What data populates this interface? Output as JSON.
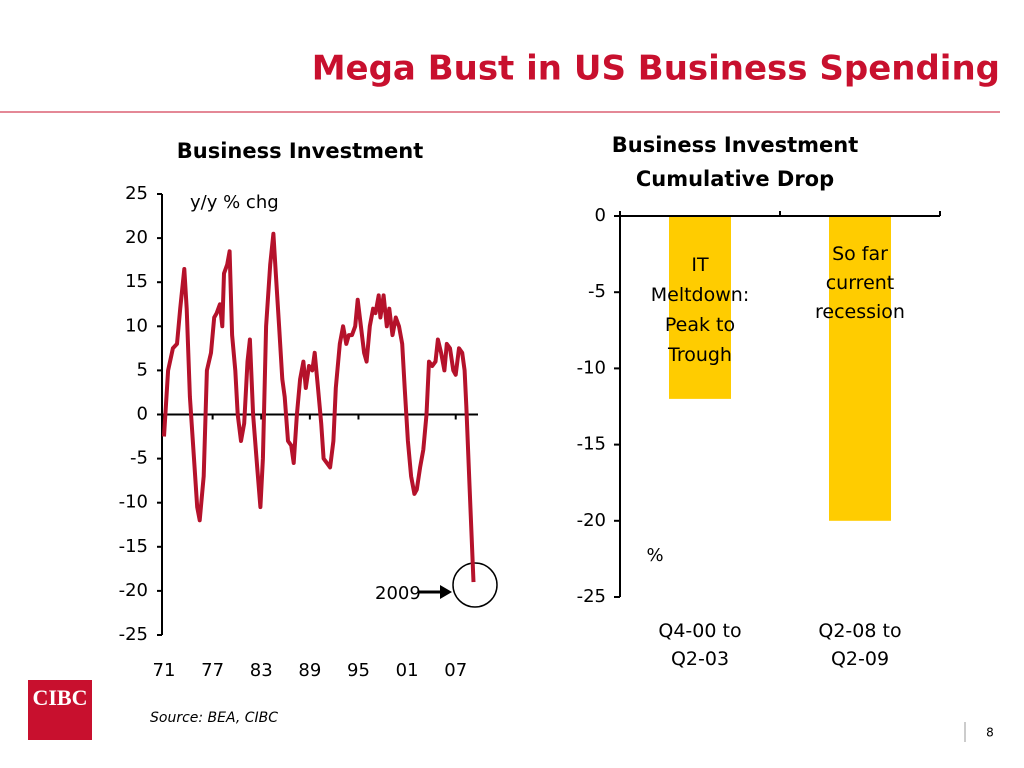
{
  "title": "Mega Bust in US Business Spending",
  "source": "Source: BEA, CIBC",
  "page_number": "8",
  "logo": "CIBC",
  "chart_data": [
    {
      "type": "line",
      "title": "Business Investment",
      "color": "#b5122b",
      "annotations": [
        "y/y % chg",
        "2009"
      ],
      "x": [
        1971.0,
        1971.5,
        1972.1,
        1972.6,
        1973.0,
        1973.5,
        1973.8,
        1974.2,
        1974.7,
        1975.1,
        1975.4,
        1975.9,
        1976.3,
        1976.8,
        1977.2,
        1977.5,
        1977.9,
        1978.2,
        1978.4,
        1978.8,
        1979.1,
        1979.4,
        1979.8,
        1980.1,
        1980.5,
        1980.9,
        1981.3,
        1981.6,
        1982.0,
        1982.5,
        1982.9,
        1983.2,
        1983.6,
        1984.1,
        1984.5,
        1984.8,
        1985.2,
        1985.6,
        1985.9,
        1986.3,
        1986.7,
        1987.0,
        1987.4,
        1987.8,
        1988.2,
        1988.5,
        1988.9,
        1989.3,
        1989.6,
        1990.0,
        1990.4,
        1990.7,
        1991.1,
        1991.5,
        1991.9,
        1992.2,
        1992.7,
        1993.1,
        1993.5,
        1993.8,
        1994.2,
        1994.6,
        1994.9,
        1995.3,
        1995.7,
        1996.0,
        1996.4,
        1996.8,
        1997.1,
        1997.5,
        1997.7,
        1998.1,
        1998.5,
        1998.8,
        1999.2,
        1999.6,
        2000.0,
        2000.4,
        2000.7,
        2001.1,
        2001.5,
        2001.9,
        2002.2,
        2002.6,
        2003.0,
        2003.4,
        2003.7,
        2004.1,
        2004.5,
        2004.8,
        2005.2,
        2005.6,
        2005.9,
        2006.3,
        2006.7,
        2007.0,
        2007.4,
        2007.8,
        2008.1,
        2008.3,
        2008.7,
        2009.2
      ],
      "values": [
        -2.5,
        5,
        7.5,
        8,
        12,
        16.5,
        12,
        2,
        -5,
        -10.5,
        -12,
        -7,
        5,
        7,
        11,
        11.5,
        12.5,
        10,
        16,
        17,
        18.5,
        9,
        5,
        0,
        -3,
        -1,
        6,
        8.5,
        0,
        -6,
        -10.5,
        -5,
        10,
        17,
        20.5,
        16,
        10,
        4,
        2,
        -3,
        -3.5,
        -5.5,
        0,
        4,
        6,
        3,
        5.5,
        5,
        7,
        3,
        -1,
        -5,
        -5.5,
        -6,
        -3,
        3,
        8,
        10,
        8,
        9,
        9,
        10,
        13,
        10,
        7,
        6,
        10,
        12,
        11.5,
        13.5,
        11,
        13.5,
        10,
        12,
        9,
        11,
        10,
        8,
        3,
        -3,
        -7,
        -9,
        -8.5,
        -6,
        -4,
        0,
        6,
        5.5,
        6,
        8.5,
        7,
        5,
        8,
        7.5,
        5,
        4.5,
        7.5,
        7,
        5,
        1,
        -8,
        -19
      ],
      "xlim": [
        1971,
        2009.75
      ],
      "xticks": [
        {
          "value": 1971,
          "label": "71"
        },
        {
          "value": 1977,
          "label": "77"
        },
        {
          "value": 1983,
          "label": "83"
        },
        {
          "value": 1989,
          "label": "89"
        },
        {
          "value": 1995,
          "label": "95"
        },
        {
          "value": 2001,
          "label": "01"
        },
        {
          "value": 2007,
          "label": "07"
        }
      ],
      "ylim": [
        -25,
        25
      ],
      "yticks": [
        25,
        20,
        15,
        10,
        5,
        0,
        -5,
        -10,
        -15,
        -20,
        -25
      ]
    },
    {
      "type": "bar",
      "title": "Business Investment Cumulative Drop",
      "color": "#ffcc00",
      "categories": [
        "Q4-00 to Q2-03",
        "Q2-08 to Q2-09"
      ],
      "values": [
        -12,
        -20
      ],
      "bar_labels": [
        "IT Meltdown: Peak to Trough",
        "So far current recession"
      ],
      "annotations": [
        "%"
      ],
      "ylim": [
        -25,
        0
      ],
      "yticks": [
        0,
        -5,
        -10,
        -15,
        -20,
        -25
      ]
    }
  ]
}
